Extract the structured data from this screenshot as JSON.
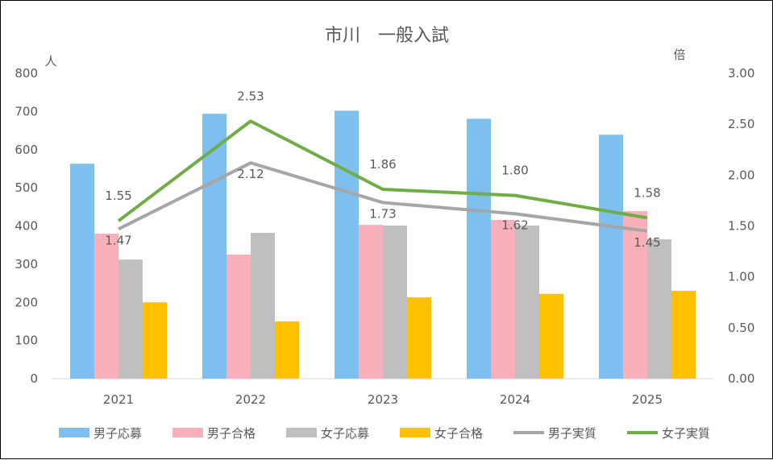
{
  "chart_data": {
    "type": "bar",
    "title": "市川　一般入試",
    "ylabel": "人",
    "y2label": "倍",
    "ylim": [
      0,
      800
    ],
    "y2lim": [
      0,
      3.0
    ],
    "yticks": [
      "0",
      "100",
      "200",
      "300",
      "400",
      "500",
      "600",
      "700",
      "800"
    ],
    "y2ticks": [
      "0.00",
      "0.50",
      "1.00",
      "1.50",
      "2.00",
      "2.50",
      "3.00"
    ],
    "categories": [
      "2021",
      "2022",
      "2023",
      "2024",
      "2025"
    ],
    "series": [
      {
        "name": "男子応募",
        "kind": "bar",
        "axis": "left",
        "color": "#7DBFEF",
        "values": [
          563,
          694,
          702,
          681,
          639
        ]
      },
      {
        "name": "男子合格",
        "kind": "bar",
        "axis": "left",
        "color": "#F8B0BA",
        "values": [
          380,
          325,
          403,
          416,
          439
        ]
      },
      {
        "name": "女子応募",
        "kind": "bar",
        "axis": "left",
        "color": "#BFBFBF",
        "values": [
          312,
          382,
          401,
          401,
          365
        ]
      },
      {
        "name": "女子合格",
        "kind": "bar",
        "axis": "left",
        "color": "#FFC000",
        "values": [
          200,
          150,
          213,
          222,
          230
        ]
      },
      {
        "name": "男子実質",
        "kind": "line",
        "axis": "right",
        "color": "#A6A6A6",
        "values": [
          1.47,
          2.12,
          1.73,
          1.62,
          1.45
        ],
        "labels": [
          "1.47",
          "2.12",
          "1.73",
          "1.62",
          "1.45"
        ]
      },
      {
        "name": "女子実質",
        "kind": "line",
        "axis": "right",
        "color": "#70AD47",
        "values": [
          1.55,
          2.53,
          1.86,
          1.8,
          1.58
        ],
        "labels": [
          "1.55",
          "2.53",
          "1.86",
          "1.80",
          "1.58"
        ]
      }
    ],
    "legend_position": "bottom",
    "grid": false
  }
}
